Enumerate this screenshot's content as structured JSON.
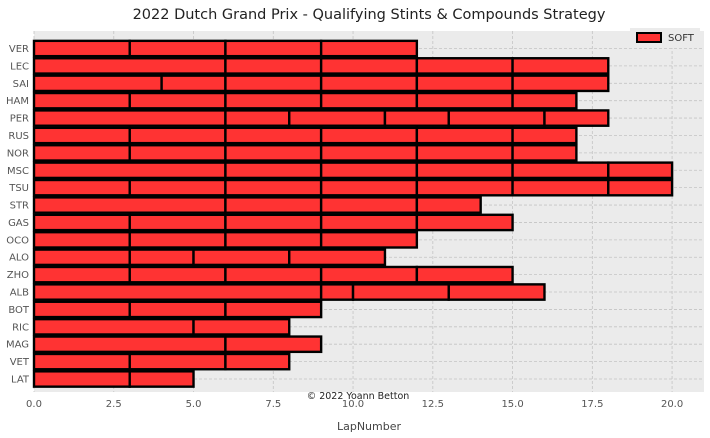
{
  "chart_data": {
    "type": "bar",
    "orientation": "horizontal-stacked",
    "title": "2022 Dutch Grand Prix - Qualifying Stints & Compounds Strategy",
    "xlabel": "LapNumber",
    "ylabel": "",
    "xlim": [
      0,
      21
    ],
    "xticks": [
      "0.0",
      "2.5",
      "5.0",
      "7.5",
      "10.0",
      "12.5",
      "15.0",
      "17.5",
      "20.0"
    ],
    "grid": true,
    "legend": {
      "position": "top-right",
      "entries": [
        {
          "name": "SOFT",
          "color": "#ff3333"
        }
      ]
    },
    "credit": "© 2022 Yoann Betton",
    "compound_color": "#ff3333",
    "drivers": [
      {
        "driver": "VER",
        "stints": [
          3,
          3,
          3,
          3
        ]
      },
      {
        "driver": "LEC",
        "stints": [
          6,
          3,
          3,
          3,
          3
        ]
      },
      {
        "driver": "SAI",
        "stints": [
          4,
          2,
          3,
          3,
          3,
          3
        ]
      },
      {
        "driver": "HAM",
        "stints": [
          3,
          3,
          3,
          3,
          3,
          2
        ]
      },
      {
        "driver": "PER",
        "stints": [
          6,
          2,
          3,
          2,
          3,
          2
        ]
      },
      {
        "driver": "RUS",
        "stints": [
          3,
          3,
          3,
          3,
          3,
          2
        ]
      },
      {
        "driver": "NOR",
        "stints": [
          3,
          3,
          3,
          3,
          3,
          2
        ]
      },
      {
        "driver": "MSC",
        "stints": [
          6,
          3,
          3,
          3,
          3,
          2
        ]
      },
      {
        "driver": "TSU",
        "stints": [
          3,
          3,
          3,
          3,
          3,
          3,
          2
        ]
      },
      {
        "driver": "STR",
        "stints": [
          6,
          3,
          3,
          2
        ]
      },
      {
        "driver": "GAS",
        "stints": [
          3,
          3,
          3,
          3,
          3
        ]
      },
      {
        "driver": "OCO",
        "stints": [
          3,
          3,
          3,
          3
        ]
      },
      {
        "driver": "ALO",
        "stints": [
          3,
          2,
          3,
          3
        ]
      },
      {
        "driver": "ZHO",
        "stints": [
          3,
          3,
          3,
          3,
          3
        ]
      },
      {
        "driver": "ALB",
        "stints": [
          9,
          1,
          3,
          3
        ]
      },
      {
        "driver": "BOT",
        "stints": [
          3,
          3,
          3
        ]
      },
      {
        "driver": "RIC",
        "stints": [
          5,
          3
        ]
      },
      {
        "driver": "MAG",
        "stints": [
          6,
          3
        ]
      },
      {
        "driver": "VET",
        "stints": [
          3,
          3,
          2
        ]
      },
      {
        "driver": "LAT",
        "stints": [
          3,
          2
        ]
      }
    ]
  }
}
